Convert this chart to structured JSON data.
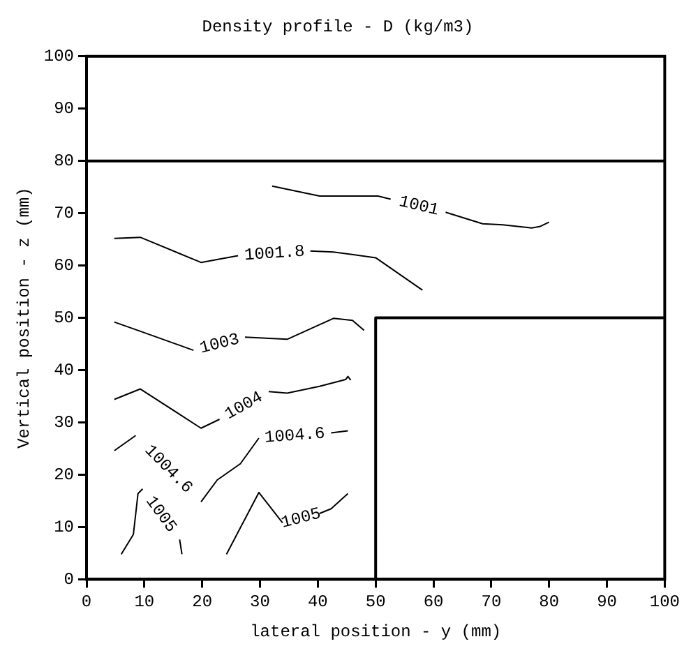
{
  "chart_data": {
    "type": "line",
    "title": "Density profile - D (kg/m3)",
    "xlabel": "lateral position - y (mm)",
    "ylabel": "Vertical position - z (mm)",
    "xlim": [
      0,
      100
    ],
    "ylim": [
      0,
      100
    ],
    "xticks": [
      0,
      10,
      20,
      30,
      40,
      50,
      60,
      70,
      80,
      90,
      100
    ],
    "yticks": [
      0,
      10,
      20,
      30,
      40,
      50,
      60,
      70,
      80,
      90,
      100
    ],
    "ref_lines": [
      {
        "axis": "y",
        "value": 80,
        "color": "#000000"
      }
    ],
    "series": [
      {
        "name": "1001",
        "color": "#000000",
        "x": [
          32.1,
          40.3,
          50.4,
          52.6,
          57.5,
          62.1,
          68.5,
          72,
          77,
          78.5,
          80
        ],
        "values": [
          75.2,
          73.3,
          73.3,
          72.7,
          null,
          70.2,
          68,
          67.8,
          67.2,
          67.5,
          68.3
        ]
      },
      {
        "name": "1001.8",
        "color": "#000000",
        "x": [
          4.8,
          9.3,
          19.8,
          26.2,
          32.5,
          38.7,
          42.7,
          50,
          58.1
        ],
        "values": [
          65.2,
          65.4,
          60.6,
          61.9,
          null,
          62.8,
          62.6,
          61.5,
          55.3
        ]
      },
      {
        "name": "1003",
        "color": "#000000",
        "x": [
          4.8,
          8.9,
          18.5,
          23,
          27.4,
          34.7,
          42.7,
          46,
          48
        ],
        "values": [
          49.2,
          47.6,
          43.8,
          null,
          46.3,
          45.9,
          49.9,
          49.5,
          47.6
        ]
      },
      {
        "name": "1004",
        "color": "#000000",
        "x": [
          4.8,
          9.3,
          19.8,
          23,
          27.2,
          31.5,
          34.7,
          40.3,
          44.8,
          45.2,
          45.7
        ],
        "values": [
          34.4,
          36.4,
          28.9,
          30.6,
          null,
          35.9,
          35.6,
          36.9,
          38.2,
          38.8,
          38.1
        ]
      },
      {
        "name": "1004.6",
        "color": "#000000",
        "x": [
          4.8,
          8.5,
          14.2,
          19.8,
          22.6,
          26.6,
          29.8,
          36,
          42.3,
          45.2
        ],
        "values": [
          24.6,
          27.5,
          null,
          14.8,
          19,
          22.1,
          27,
          null,
          28,
          28.4
        ]
      },
      {
        "name": "1005",
        "color": "#000000",
        "x": [
          6,
          8.1,
          8.9,
          9.7,
          12.9,
          16.1,
          16.5
        ],
        "values": [
          4.8,
          8.6,
          16.4,
          17.3,
          null,
          7.6,
          4.8
        ]
      },
      {
        "name": "1005",
        "color": "#000000",
        "x": [
          24.2,
          29.8,
          33.9,
          37.1,
          40.3,
          42.3,
          45.2
        ],
        "values": [
          4.8,
          16.6,
          10.8,
          null,
          12.6,
          13.5,
          16.4
        ]
      },
      {
        "type": "line",
        "color": "#000000",
        "x": [
          50,
          50,
          100
        ],
        "values": [
          0,
          50,
          50
        ]
      }
    ]
  }
}
